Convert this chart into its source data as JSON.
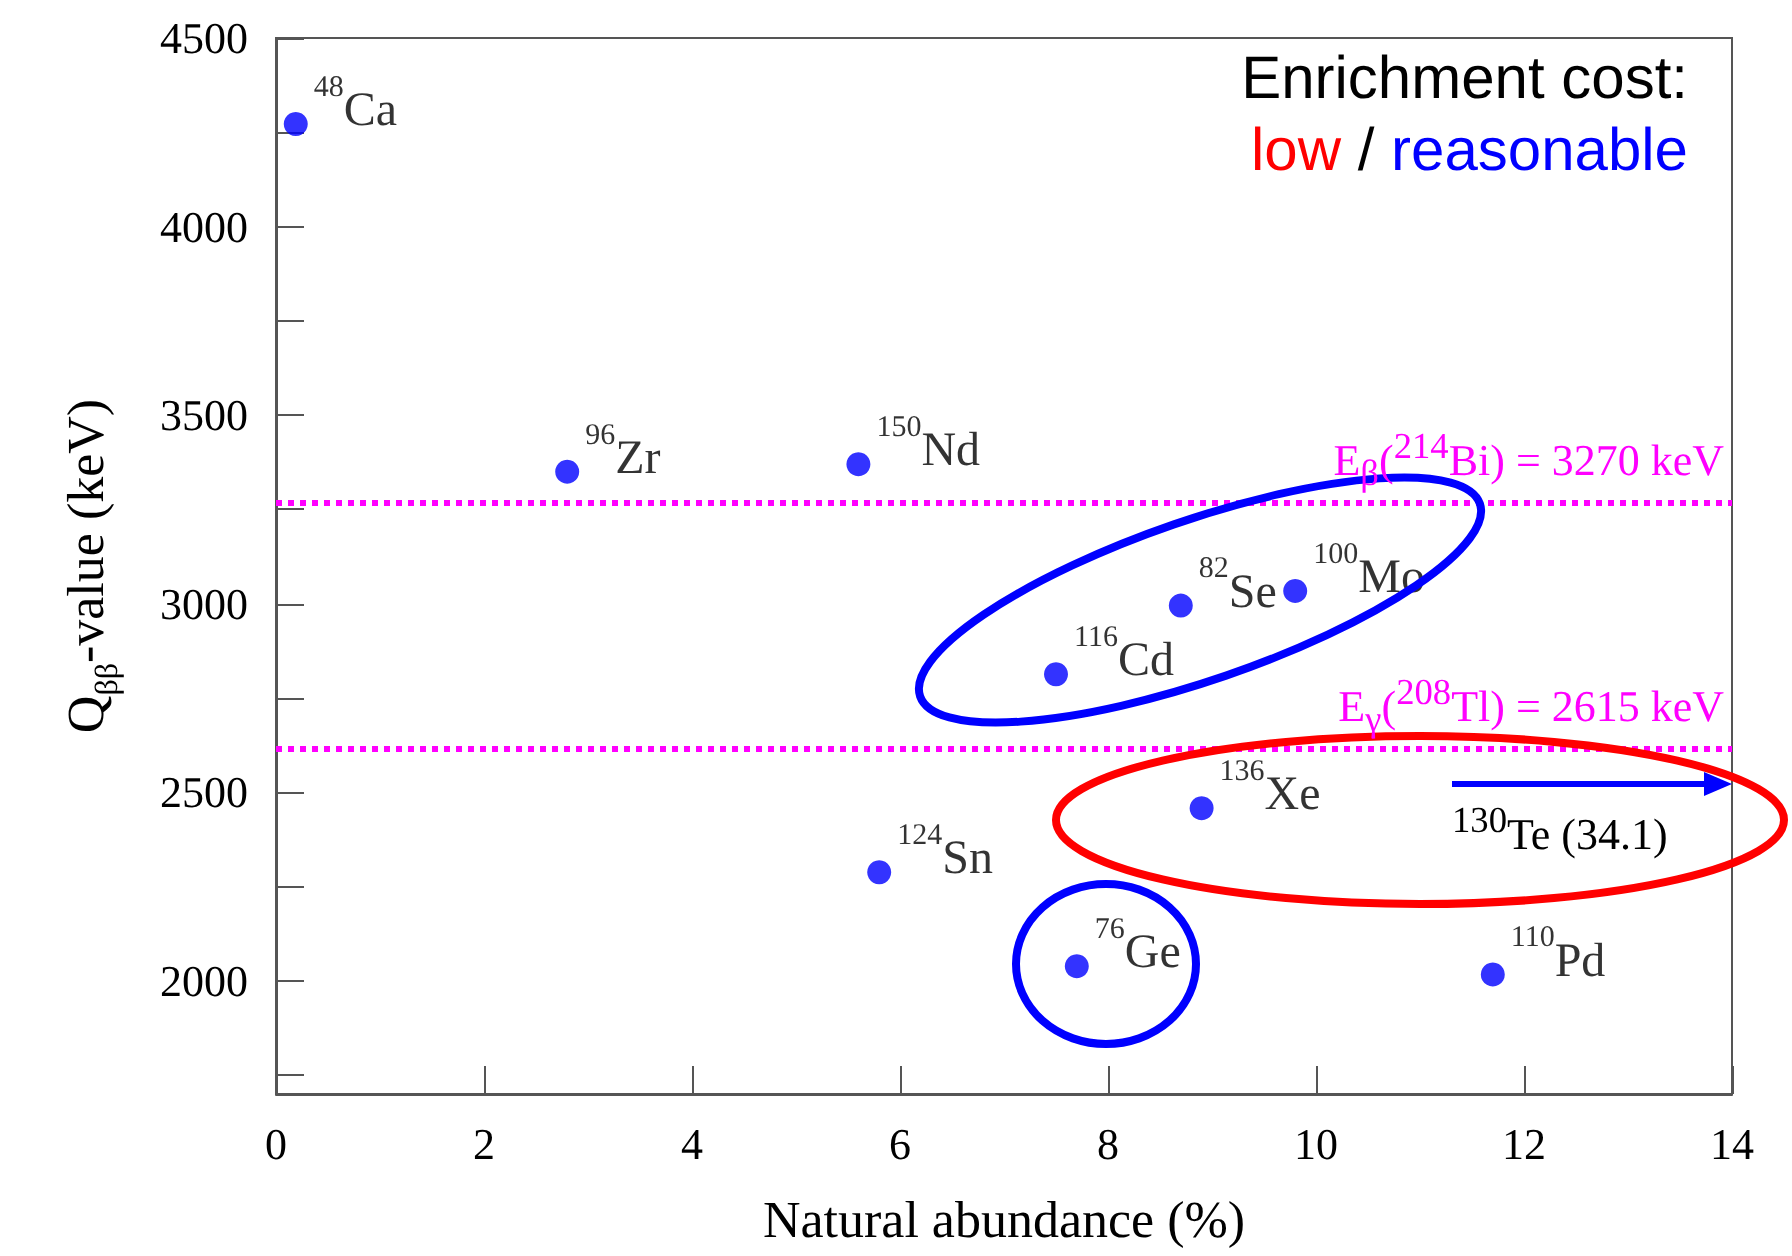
{
  "chart_data": {
    "type": "scatter",
    "xlabel": "Natural abundance (%)",
    "ylabel": "Q$_{ββ}$-value (keV)",
    "xlim": [
      0,
      14
    ],
    "xticks": [
      0,
      2,
      4,
      6,
      8,
      10,
      12,
      14
    ],
    "ylim": [
      1700,
      4500
    ],
    "yticks": [
      {
        "value": 1750,
        "label": null
      },
      2000,
      {
        "value": 2250,
        "label": null
      },
      2500,
      {
        "value": 2750,
        "label": null
      },
      3000,
      {
        "value": 3250,
        "label": null
      },
      3500,
      {
        "value": 3750,
        "label": null
      },
      4000,
      {
        "value": 4250,
        "label": null
      },
      4500
    ],
    "grid": false,
    "marker": "circle",
    "series": [
      {
        "name": "$^{48}$Ca",
        "color": "#0000ff",
        "x": [
          0.19
        ],
        "values": [
          4272
        ]
      },
      {
        "name": "$^{96}$Zr",
        "color": "#0000ff",
        "x": [
          2.8
        ],
        "values": [
          3350
        ]
      },
      {
        "name": "$^{150}$Nd",
        "color": "#0000ff",
        "x": [
          5.6
        ],
        "values": [
          3370
        ]
      },
      {
        "name": "$^{82}$Se",
        "color": "#0000ff",
        "x": [
          8.7
        ],
        "values": [
          2995
        ]
      },
      {
        "name": "$^{100}$Mo",
        "color": "#0000ff",
        "x": [
          9.8
        ],
        "values": [
          3034
        ]
      },
      {
        "name": "$^{116}$Cd",
        "color": "#0000ff",
        "x": [
          7.5
        ],
        "values": [
          2813
        ]
      },
      {
        "name": "$^{136}$Xe",
        "color": "#0000ff",
        "x": [
          8.9
        ],
        "values": [
          2458
        ]
      },
      {
        "name": "$^{124}$Sn",
        "color": "#0000ff",
        "x": [
          5.8
        ],
        "values": [
          2288
        ]
      },
      {
        "name": "$^{76}$Ge",
        "color": "#0000ff",
        "x": [
          7.7
        ],
        "values": [
          2039
        ]
      },
      {
        "name": "$^{110}$Pd",
        "color": "#0000ff",
        "x": [
          11.7
        ],
        "values": [
          2017
        ]
      }
    ],
    "ref_lines": [
      {
        "axis": "y",
        "value": 3270,
        "label": "E$_{β}$($^{214}$Bi) = 3270 keV",
        "color": "#ff00ff",
        "line_style": "dotted"
      },
      {
        "axis": "y",
        "value": 2615,
        "label": "E$_{γ}$($^{208}$Tl) = 2615 keV",
        "color": "#ff00ff",
        "line_style": "dotted"
      }
    ],
    "annotations": [
      "Enrichment cost:",
      "low",
      "/",
      "reasonable",
      "$^{130}$Te (34.1)"
    ]
  }
}
